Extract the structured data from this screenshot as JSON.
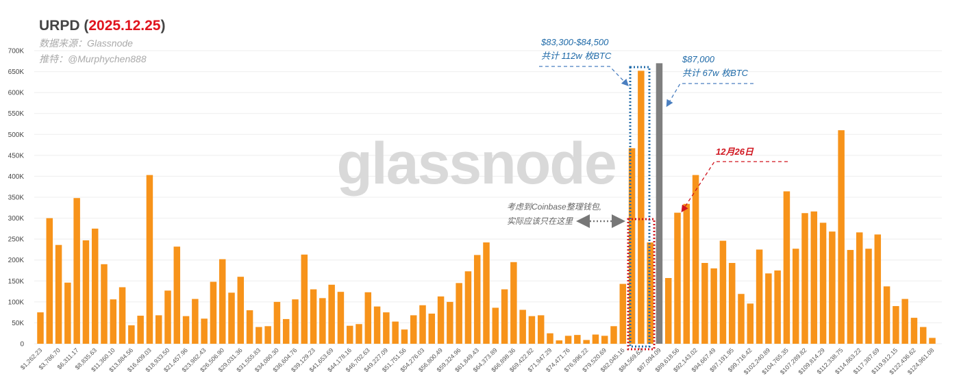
{
  "chart_data": {
    "type": "bar",
    "title": "URPD",
    "title_date": "2025.12.25",
    "subtitle_source": "数据来源：Glassnode",
    "subtitle_twitter": "推特：@Murphychen888",
    "watermark": "glassnode",
    "xlabel": "",
    "ylabel": "",
    "ylim": [
      0,
      700000
    ],
    "yticks": [
      0,
      50000,
      100000,
      150000,
      200000,
      250000,
      300000,
      350000,
      400000,
      450000,
      500000,
      550000,
      600000,
      650000,
      700000
    ],
    "ytick_labels": [
      "0",
      "50K",
      "100K",
      "150K",
      "200K",
      "250K",
      "300K",
      "350K",
      "400K",
      "450K",
      "500K",
      "550K",
      "600K",
      "650K",
      "700K"
    ],
    "bin_start": 1262.23,
    "bin_width": 1262.235,
    "tick_labels": [
      "$1,262.23",
      "$3,786.70",
      "$6,311.17",
      "$8,835.63",
      "$11,360.10",
      "$13,884.56",
      "$16,409.03",
      "$18,933.50",
      "$21,457.96",
      "$23,982.43",
      "$26,506.90",
      "$29,031.36",
      "$31,555.83",
      "$34,080.30",
      "$36,604.76",
      "$39,129.23",
      "$41,653.69",
      "$44,178.16",
      "$46,702.63",
      "$49,227.09",
      "$51,751.56",
      "$54,276.03",
      "$56,800.49",
      "$59,324.96",
      "$61,849.43",
      "$64,373.89",
      "$66,898.36",
      "$69,422.82",
      "$71,947.29",
      "$74,471.76",
      "$76,996.22",
      "$79,520.69",
      "$82,045.16",
      "$84,569.62",
      "$87,094.09",
      "$89,618.56",
      "$92,143.02",
      "$94,667.49",
      "$97,191.95",
      "$99,716.42",
      "$102,240.89",
      "$104,765.35",
      "$107,289.82",
      "$109,814.29",
      "$112,338.75",
      "$114,863.22",
      "$117,387.69",
      "$119,912.15",
      "$122,436.62",
      "$124,961.08"
    ],
    "values_k": [
      75,
      300,
      236,
      146,
      348,
      247,
      275,
      190,
      106,
      135,
      44,
      67,
      403,
      68,
      127,
      232,
      66,
      107,
      60,
      148,
      202,
      122,
      160,
      80,
      40,
      42,
      100,
      59,
      106,
      213,
      130,
      109,
      141,
      124,
      43,
      47,
      123,
      89,
      75,
      53,
      34,
      68,
      92,
      72,
      113,
      100,
      145,
      173,
      212,
      242,
      86,
      130,
      195,
      81,
      66,
      68,
      25,
      8,
      19,
      21,
      9,
      22,
      19,
      42,
      143,
      467,
      652,
      242,
      670,
      157,
      313,
      334,
      403,
      193,
      180,
      246,
      193,
      119,
      96,
      225,
      168,
      175,
      364,
      227,
      312,
      316,
      289,
      268,
      510,
      224,
      266,
      227,
      261,
      137,
      90,
      107,
      62,
      40,
      14
    ],
    "highlight_index": 68,
    "colors": {
      "bar": "#f7931a",
      "highlight": "#7f7f7f",
      "blue": "#1f6aa8",
      "red": "#d0141e",
      "grey": "#777777"
    },
    "annotations": {
      "range_price": "$83,300-$84,500",
      "range_amount": "共计 112w 枚BTC",
      "spot_price": "$87,000",
      "spot_amount": "共计 67w 枚BTC",
      "date_note": "12月26日",
      "coinbase_line1": "考虑到Coinbase整理钱包,",
      "coinbase_line2": "实际应该只在这里"
    }
  }
}
